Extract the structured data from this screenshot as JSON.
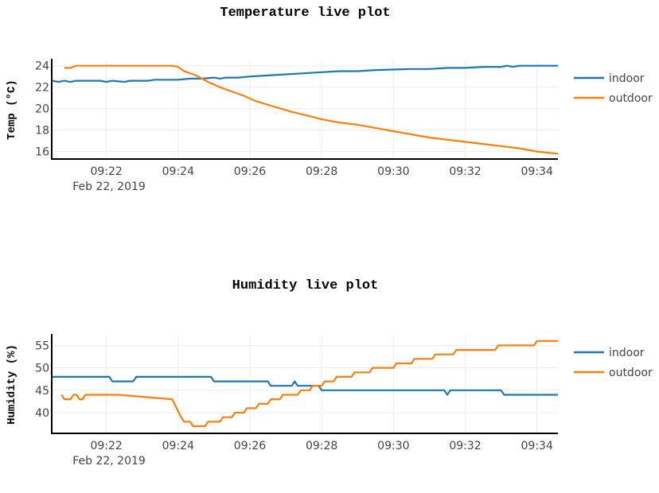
{
  "chart_data": [
    {
      "type": "line",
      "title": "Temperature live plot",
      "ylabel": "Temp (°C)",
      "xlabel": "",
      "date_label": "Feb 22, 2019",
      "xlim": [
        "09:20:30",
        "09:34:35"
      ],
      "ylim": [
        15.3,
        24.5
      ],
      "yticks": [
        16,
        18,
        20,
        22,
        24
      ],
      "xticks": [
        "09:22",
        "09:24",
        "09:26",
        "09:28",
        "09:30",
        "09:32",
        "09:34"
      ],
      "grid": true,
      "legend_position": "right",
      "series": [
        {
          "name": "indoor",
          "color": "#1f77b4",
          "points": [
            [
              "09:20:30",
              22.6
            ],
            [
              "09:20:40",
              22.5
            ],
            [
              "09:20:50",
              22.6
            ],
            [
              "09:21:00",
              22.5
            ],
            [
              "09:21:10",
              22.6
            ],
            [
              "09:21:50",
              22.6
            ],
            [
              "09:22:00",
              22.5
            ],
            [
              "09:22:10",
              22.6
            ],
            [
              "09:22:30",
              22.5
            ],
            [
              "09:22:40",
              22.6
            ],
            [
              "09:23:10",
              22.6
            ],
            [
              "09:23:20",
              22.7
            ],
            [
              "09:24:00",
              22.7
            ],
            [
              "09:24:20",
              22.8
            ],
            [
              "09:24:40",
              22.8
            ],
            [
              "09:25:00",
              22.9
            ],
            [
              "09:25:10",
              22.8
            ],
            [
              "09:25:20",
              22.9
            ],
            [
              "09:25:40",
              22.9
            ],
            [
              "09:26:00",
              23.0
            ],
            [
              "09:26:30",
              23.1
            ],
            [
              "09:27:00",
              23.2
            ],
            [
              "09:27:30",
              23.3
            ],
            [
              "09:28:00",
              23.4
            ],
            [
              "09:28:30",
              23.5
            ],
            [
              "09:29:00",
              23.5
            ],
            [
              "09:29:30",
              23.6
            ],
            [
              "09:30:30",
              23.7
            ],
            [
              "09:31:00",
              23.7
            ],
            [
              "09:31:30",
              23.8
            ],
            [
              "09:32:00",
              23.8
            ],
            [
              "09:32:30",
              23.9
            ],
            [
              "09:33:00",
              23.9
            ],
            [
              "09:33:10",
              24.0
            ],
            [
              "09:33:20",
              23.9
            ],
            [
              "09:33:30",
              24.0
            ],
            [
              "09:34:35",
              24.0
            ]
          ]
        },
        {
          "name": "outdoor",
          "color": "#ff7f0e",
          "points": [
            [
              "09:20:50",
              23.8
            ],
            [
              "09:21:00",
              23.8
            ],
            [
              "09:21:10",
              24.0
            ],
            [
              "09:23:50",
              24.0
            ],
            [
              "09:24:00",
              23.9
            ],
            [
              "09:24:10",
              23.5
            ],
            [
              "09:24:30",
              23.1
            ],
            [
              "09:24:50",
              22.5
            ],
            [
              "09:25:10",
              22.0
            ],
            [
              "09:25:30",
              21.6
            ],
            [
              "09:25:50",
              21.2
            ],
            [
              "09:26:10",
              20.7
            ],
            [
              "09:26:40",
              20.2
            ],
            [
              "09:27:10",
              19.7
            ],
            [
              "09:27:40",
              19.3
            ],
            [
              "09:28:00",
              19.0
            ],
            [
              "09:28:30",
              18.7
            ],
            [
              "09:29:00",
              18.5
            ],
            [
              "09:29:30",
              18.2
            ],
            [
              "09:30:00",
              17.9
            ],
            [
              "09:30:30",
              17.6
            ],
            [
              "09:31:00",
              17.3
            ],
            [
              "09:31:30",
              17.1
            ],
            [
              "09:32:00",
              16.9
            ],
            [
              "09:32:30",
              16.7
            ],
            [
              "09:33:00",
              16.5
            ],
            [
              "09:33:30",
              16.3
            ],
            [
              "09:34:00",
              16.0
            ],
            [
              "09:34:35",
              15.8
            ]
          ]
        }
      ]
    },
    {
      "type": "line",
      "title": "Humidity live plot",
      "ylabel": "Humidity (%)",
      "xlabel": "",
      "date_label": "Feb 22, 2019",
      "xlim": [
        "09:20:30",
        "09:34:35"
      ],
      "ylim": [
        35.4,
        57.2
      ],
      "yticks": [
        40,
        45,
        50,
        55
      ],
      "xticks": [
        "09:22",
        "09:24",
        "09:26",
        "09:28",
        "09:30",
        "09:32",
        "09:34"
      ],
      "grid": true,
      "legend_position": "right",
      "series": [
        {
          "name": "indoor",
          "color": "#1f77b4",
          "points": [
            [
              "09:20:30",
              48
            ],
            [
              "09:22:05",
              48
            ],
            [
              "09:22:10",
              47
            ],
            [
              "09:22:45",
              47
            ],
            [
              "09:22:50",
              48
            ],
            [
              "09:24:55",
              48
            ],
            [
              "09:25:00",
              47
            ],
            [
              "09:26:30",
              47
            ],
            [
              "09:26:35",
              46
            ],
            [
              "09:27:10",
              46
            ],
            [
              "09:27:15",
              47
            ],
            [
              "09:27:20",
              46
            ],
            [
              "09:27:55",
              46
            ],
            [
              "09:28:00",
              45
            ],
            [
              "09:31:25",
              45
            ],
            [
              "09:31:30",
              44
            ],
            [
              "09:31:35",
              45
            ],
            [
              "09:33:00",
              45
            ],
            [
              "09:33:05",
              44
            ],
            [
              "09:34:35",
              44
            ]
          ]
        },
        {
          "name": "outdoor",
          "color": "#ff7f0e",
          "points": [
            [
              "09:20:45",
              44
            ],
            [
              "09:20:50",
              43
            ],
            [
              "09:21:00",
              43
            ],
            [
              "09:21:05",
              44
            ],
            [
              "09:21:10",
              44
            ],
            [
              "09:21:15",
              43
            ],
            [
              "09:21:20",
              43
            ],
            [
              "09:21:25",
              44
            ],
            [
              "09:22:20",
              44
            ],
            [
              "09:23:50",
              43
            ],
            [
              "09:24:05",
              39
            ],
            [
              "09:24:10",
              38
            ],
            [
              "09:24:20",
              38
            ],
            [
              "09:24:25",
              37
            ],
            [
              "09:24:45",
              37
            ],
            [
              "09:24:50",
              38
            ],
            [
              "09:25:10",
              38
            ],
            [
              "09:25:15",
              39
            ],
            [
              "09:25:30",
              39
            ],
            [
              "09:25:35",
              40
            ],
            [
              "09:25:50",
              40
            ],
            [
              "09:25:55",
              41
            ],
            [
              "09:26:10",
              41
            ],
            [
              "09:26:15",
              42
            ],
            [
              "09:26:30",
              42
            ],
            [
              "09:26:35",
              43
            ],
            [
              "09:26:50",
              43
            ],
            [
              "09:26:55",
              44
            ],
            [
              "09:27:20",
              44
            ],
            [
              "09:27:25",
              45
            ],
            [
              "09:27:40",
              45
            ],
            [
              "09:27:45",
              46
            ],
            [
              "09:28:00",
              46
            ],
            [
              "09:28:05",
              47
            ],
            [
              "09:28:20",
              47
            ],
            [
              "09:28:25",
              48
            ],
            [
              "09:28:50",
              48
            ],
            [
              "09:28:55",
              49
            ],
            [
              "09:29:20",
              49
            ],
            [
              "09:29:25",
              50
            ],
            [
              "09:30:00",
              50
            ],
            [
              "09:30:05",
              51
            ],
            [
              "09:30:30",
              51
            ],
            [
              "09:30:35",
              52
            ],
            [
              "09:31:05",
              52
            ],
            [
              "09:31:10",
              53
            ],
            [
              "09:31:40",
              53
            ],
            [
              "09:31:45",
              54
            ],
            [
              "09:32:50",
              54
            ],
            [
              "09:32:55",
              55
            ],
            [
              "09:33:55",
              55
            ],
            [
              "09:34:00",
              56
            ],
            [
              "09:34:35",
              56
            ]
          ]
        }
      ]
    }
  ]
}
